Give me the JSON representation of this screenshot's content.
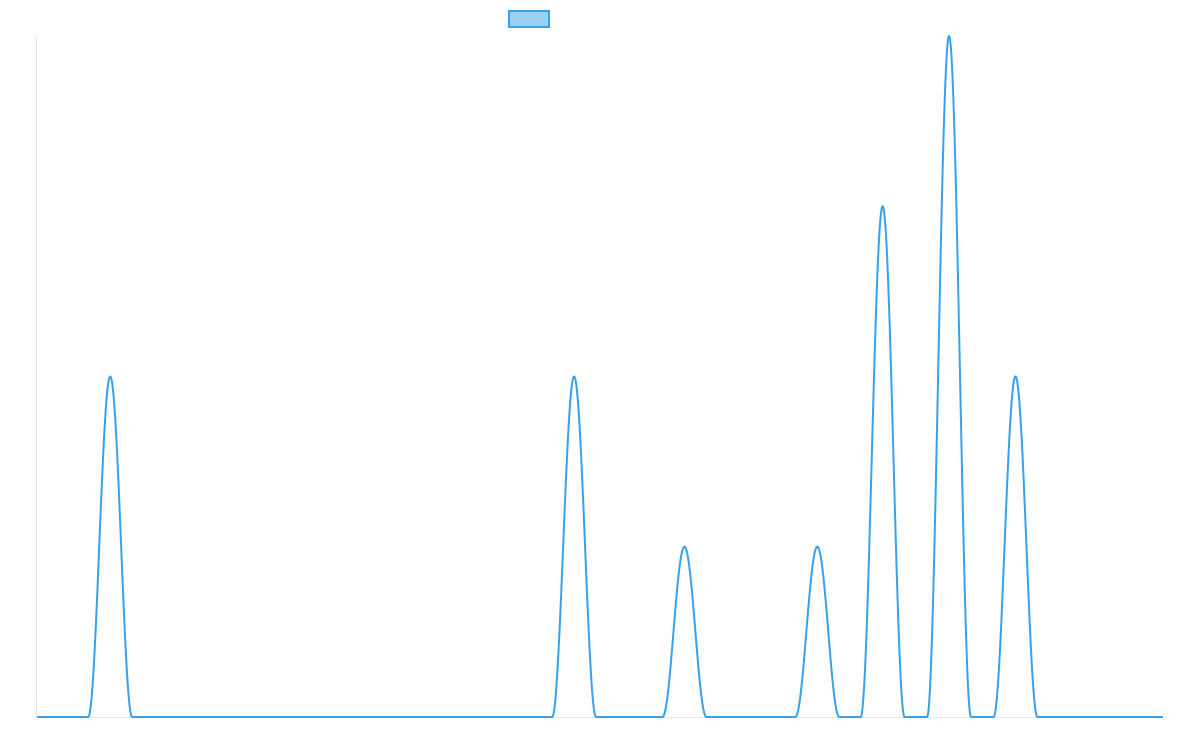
{
  "chart_data": {
    "type": "line",
    "title": "",
    "xlabel": "",
    "ylabel": "",
    "grid": false,
    "legend_position": "top",
    "series": [
      {
        "color": "#36a2eb",
        "fill_color": "#9ad0f5",
        "peaks": [
          {
            "x": 0.065,
            "y": 2
          },
          {
            "x": 0.477,
            "y": 2
          },
          {
            "x": 0.575,
            "y": 1
          },
          {
            "x": 0.693,
            "y": 1
          },
          {
            "x": 0.751,
            "y": 3
          },
          {
            "x": 0.81,
            "y": 4
          },
          {
            "x": 0.869,
            "y": 2
          }
        ],
        "peak_half_width": 0.0195
      }
    ],
    "xlim": [
      0,
      1
    ],
    "ylim": [
      0,
      4
    ]
  }
}
